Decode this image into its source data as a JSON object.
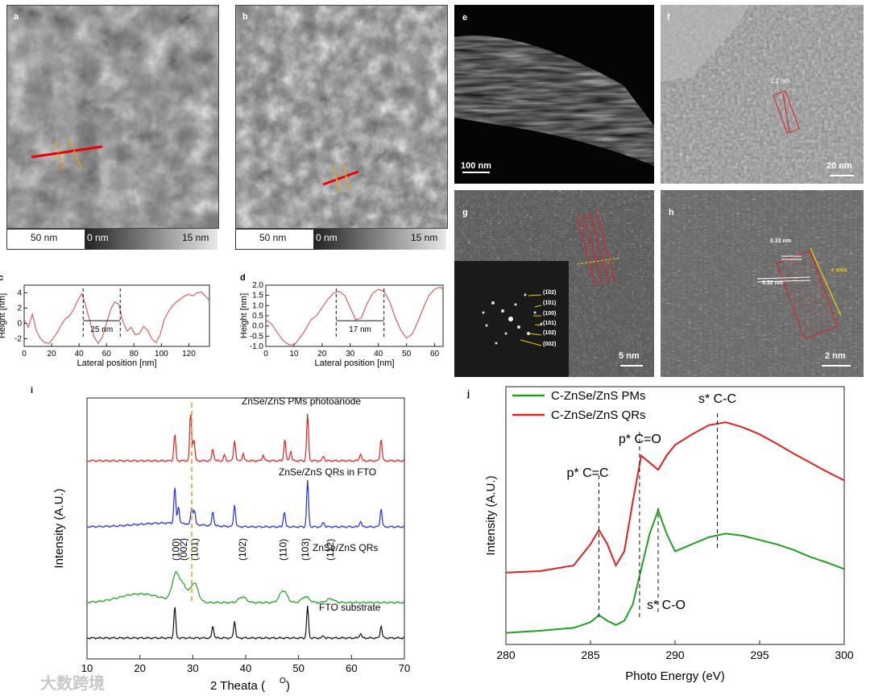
{
  "figure": {
    "panel_a": {
      "label": "a",
      "scale": "50 nm",
      "range_min": "0 nm",
      "range_max": "15 nm"
    },
    "panel_b": {
      "label": "b",
      "scale": "50 nm",
      "range_min": "0 nm",
      "range_max": "15 nm"
    },
    "panel_e": {
      "label": "e",
      "scale": "100 nm"
    },
    "panel_f": {
      "label": "f",
      "scale": "20 nm",
      "annotation": "2.2 nm"
    },
    "panel_g": {
      "label": "g",
      "scale": "5 nm",
      "fft_labels": [
        "(1̅02)",
        "(1̅01)",
        "(100)",
        "(101)",
        "(102)",
        "(002)"
      ]
    },
    "panel_h": {
      "label": "h",
      "scale": "2 nm",
      "ann1": "0.33 nm",
      "ann2": "0.32 nm",
      "ann3": "c axis"
    },
    "watermark": "大数跨境"
  },
  "chart_data": [
    {
      "id": "c",
      "type": "line",
      "title": "",
      "xlabel": "Lateral position [nm]",
      "ylabel": "Height [nm]",
      "xlim": [
        0,
        135
      ],
      "ylim": [
        -3,
        5
      ],
      "xticks": [
        0,
        20,
        40,
        60,
        80,
        100,
        120
      ],
      "yticks": [
        -2,
        0,
        2,
        4
      ],
      "annotation": "25 nm",
      "markers_x": [
        43,
        70
      ],
      "x": [
        0,
        3,
        6,
        9,
        12,
        15,
        18,
        21,
        24,
        27,
        30,
        33,
        36,
        39,
        42,
        45,
        48,
        51,
        54,
        57,
        60,
        63,
        66,
        69,
        72,
        75,
        78,
        81,
        84,
        87,
        90,
        93,
        96,
        99,
        102,
        105,
        108,
        111,
        114,
        117,
        120,
        123,
        126,
        129,
        132,
        135
      ],
      "y": [
        0.5,
        -0.5,
        1.2,
        -1.0,
        -2.0,
        -2.5,
        -2.6,
        -2.0,
        -1.2,
        -0.2,
        0.6,
        1.0,
        1.8,
        3.0,
        3.9,
        2.2,
        0.2,
        -1.8,
        -2.6,
        -1.8,
        0.0,
        1.8,
        2.8,
        2.5,
        0.2,
        -1.0,
        -0.5,
        -1.5,
        -1.3,
        -0.4,
        -0.9,
        -2.0,
        -2.5,
        -1.5,
        0.5,
        1.5,
        2.3,
        2.8,
        3.2,
        3.6,
        3.8,
        3.6,
        4.0,
        4.1,
        3.6,
        3.0
      ]
    },
    {
      "id": "d",
      "type": "line",
      "title": "",
      "xlabel": "Lateral position [nm]",
      "ylabel": "Height [nm]",
      "xlim": [
        0,
        63
      ],
      "ylim": [
        -1.0,
        2.0
      ],
      "xticks": [
        0,
        10,
        20,
        30,
        40,
        50,
        60
      ],
      "yticks": [
        -1.0,
        -0.5,
        0.0,
        0.5,
        1.0,
        1.5,
        2.0
      ],
      "annotation": "17 nm",
      "markers_x": [
        25,
        42
      ],
      "x": [
        0,
        2,
        4,
        6,
        8,
        10,
        12,
        14,
        16,
        18,
        20,
        22,
        24,
        26,
        28,
        30,
        32,
        34,
        36,
        38,
        40,
        42,
        44,
        46,
        48,
        50,
        52,
        54,
        56,
        58,
        60,
        62,
        63
      ],
      "y": [
        0.3,
        0.1,
        -0.3,
        -0.7,
        -0.9,
        -0.95,
        -0.6,
        -0.2,
        0.3,
        0.5,
        0.9,
        1.3,
        1.6,
        1.7,
        1.5,
        0.9,
        0.3,
        0.4,
        1.1,
        1.6,
        1.8,
        1.7,
        1.2,
        0.4,
        -0.2,
        -0.6,
        -0.4,
        0.2,
        0.9,
        1.5,
        1.8,
        1.9,
        1.8
      ]
    },
    {
      "id": "i",
      "type": "line",
      "title": "",
      "xlabel": "2 Theata (",
      "xlabel_sup": "O",
      "xlabel_end": ")",
      "ylabel": "Intensity (A.U.)",
      "xlim": [
        10,
        70
      ],
      "xticks": [
        10,
        20,
        30,
        40,
        50,
        60,
        70
      ],
      "dashed_x": 29.8,
      "series": [
        {
          "name": "ZnSe/ZnS PMs photoanode",
          "color": "#e02020",
          "offset": 3,
          "peaks": [
            [
              26.6,
              0.55
            ],
            [
              29.6,
              1.0
            ],
            [
              30.2,
              0.45
            ],
            [
              33.8,
              0.25
            ],
            [
              36.0,
              0.12
            ],
            [
              37.9,
              0.42
            ],
            [
              39.5,
              0.15
            ],
            [
              43.3,
              0.12
            ],
            [
              47.4,
              0.45
            ],
            [
              48.5,
              0.2
            ],
            [
              51.7,
              0.95
            ],
            [
              54.7,
              0.1
            ],
            [
              61.7,
              0.15
            ],
            [
              65.6,
              0.45
            ]
          ]
        },
        {
          "name": "ZnSe/ZnS QRs in FTO",
          "color": "#2030e0",
          "offset": 2,
          "peaks": [
            [
              26.6,
              0.75
            ],
            [
              27.3,
              0.35
            ],
            [
              29.8,
              0.35
            ],
            [
              30.3,
              0.3
            ],
            [
              33.8,
              0.3
            ],
            [
              37.9,
              0.45
            ],
            [
              47.3,
              0.32
            ],
            [
              51.7,
              0.95
            ],
            [
              54.7,
              0.1
            ],
            [
              61.7,
              0.12
            ],
            [
              65.6,
              0.38
            ]
          ]
        },
        {
          "name": "ZnSe/ZnS QRs",
          "color": "#20a020",
          "offset": 1,
          "peaks": [
            [
              26.8,
              0.55
            ],
            [
              28.3,
              0.3
            ],
            [
              30.3,
              0.4
            ],
            [
              39.4,
              0.12
            ],
            [
              47.1,
              0.25
            ],
            [
              51.3,
              0.12
            ],
            [
              56.0,
              0.08
            ]
          ],
          "labels": [
            [
              "(100)",
              26.8
            ],
            [
              "(002)",
              28.3
            ],
            [
              "(101)",
              30.3
            ],
            [
              "(102)",
              39.4
            ],
            [
              "(110)",
              47.1
            ],
            [
              "(103)",
              51.3
            ],
            [
              "(112)",
              56.0
            ]
          ]
        },
        {
          "name": "FTO substrate",
          "color": "#111111",
          "offset": 0,
          "peaks": [
            [
              26.6,
              0.65
            ],
            [
              33.8,
              0.25
            ],
            [
              37.9,
              0.35
            ],
            [
              51.7,
              0.65
            ],
            [
              54.7,
              0.05
            ],
            [
              61.7,
              0.1
            ],
            [
              65.6,
              0.25
            ]
          ]
        }
      ]
    },
    {
      "id": "j",
      "type": "line",
      "title": "",
      "xlabel": "Photo Energy (eV)",
      "ylabel": "Intensity (A.U.)",
      "xlim": [
        280,
        300
      ],
      "xticks": [
        280,
        285,
        290,
        295,
        300
      ],
      "legend": [
        "C-ZnSe/ZnS PMs",
        "C-ZnSe/ZnS QRs"
      ],
      "annotations": [
        {
          "text": "p* C=C",
          "x": 285.5
        },
        {
          "text": "p* C=O",
          "x": 287.9
        },
        {
          "text": "s* C-O",
          "x": 289.0
        },
        {
          "text": "s* C-C",
          "x": 292.5
        }
      ],
      "series": [
        {
          "name": "C-ZnSe/ZnS PMs",
          "color": "#20a020",
          "x": [
            280,
            282,
            284,
            285,
            285.5,
            286,
            286.5,
            287,
            287.5,
            288,
            288.5,
            289,
            289.5,
            290,
            291,
            292,
            293,
            294,
            295,
            296,
            297,
            298,
            299,
            300
          ],
          "y": [
            0.05,
            0.08,
            0.12,
            0.2,
            0.3,
            0.22,
            0.16,
            0.22,
            0.45,
            0.95,
            1.45,
            1.78,
            1.45,
            1.2,
            1.3,
            1.4,
            1.45,
            1.42,
            1.36,
            1.3,
            1.22,
            1.12,
            1.04,
            0.95
          ]
        },
        {
          "name": "C-ZnSe/ZnS QRs",
          "color": "#e02020",
          "x": [
            280,
            282,
            284,
            285,
            285.5,
            286,
            286.5,
            287,
            287.5,
            288,
            288.5,
            289,
            289.5,
            290,
            291,
            292,
            293,
            294,
            295,
            296,
            297,
            298,
            299,
            300
          ],
          "y": [
            0.9,
            0.92,
            1.0,
            1.3,
            1.5,
            1.3,
            1.0,
            1.2,
            1.9,
            2.55,
            2.45,
            2.35,
            2.55,
            2.7,
            2.85,
            2.98,
            3.02,
            2.95,
            2.85,
            2.72,
            2.58,
            2.45,
            2.32,
            2.2
          ]
        }
      ]
    }
  ]
}
